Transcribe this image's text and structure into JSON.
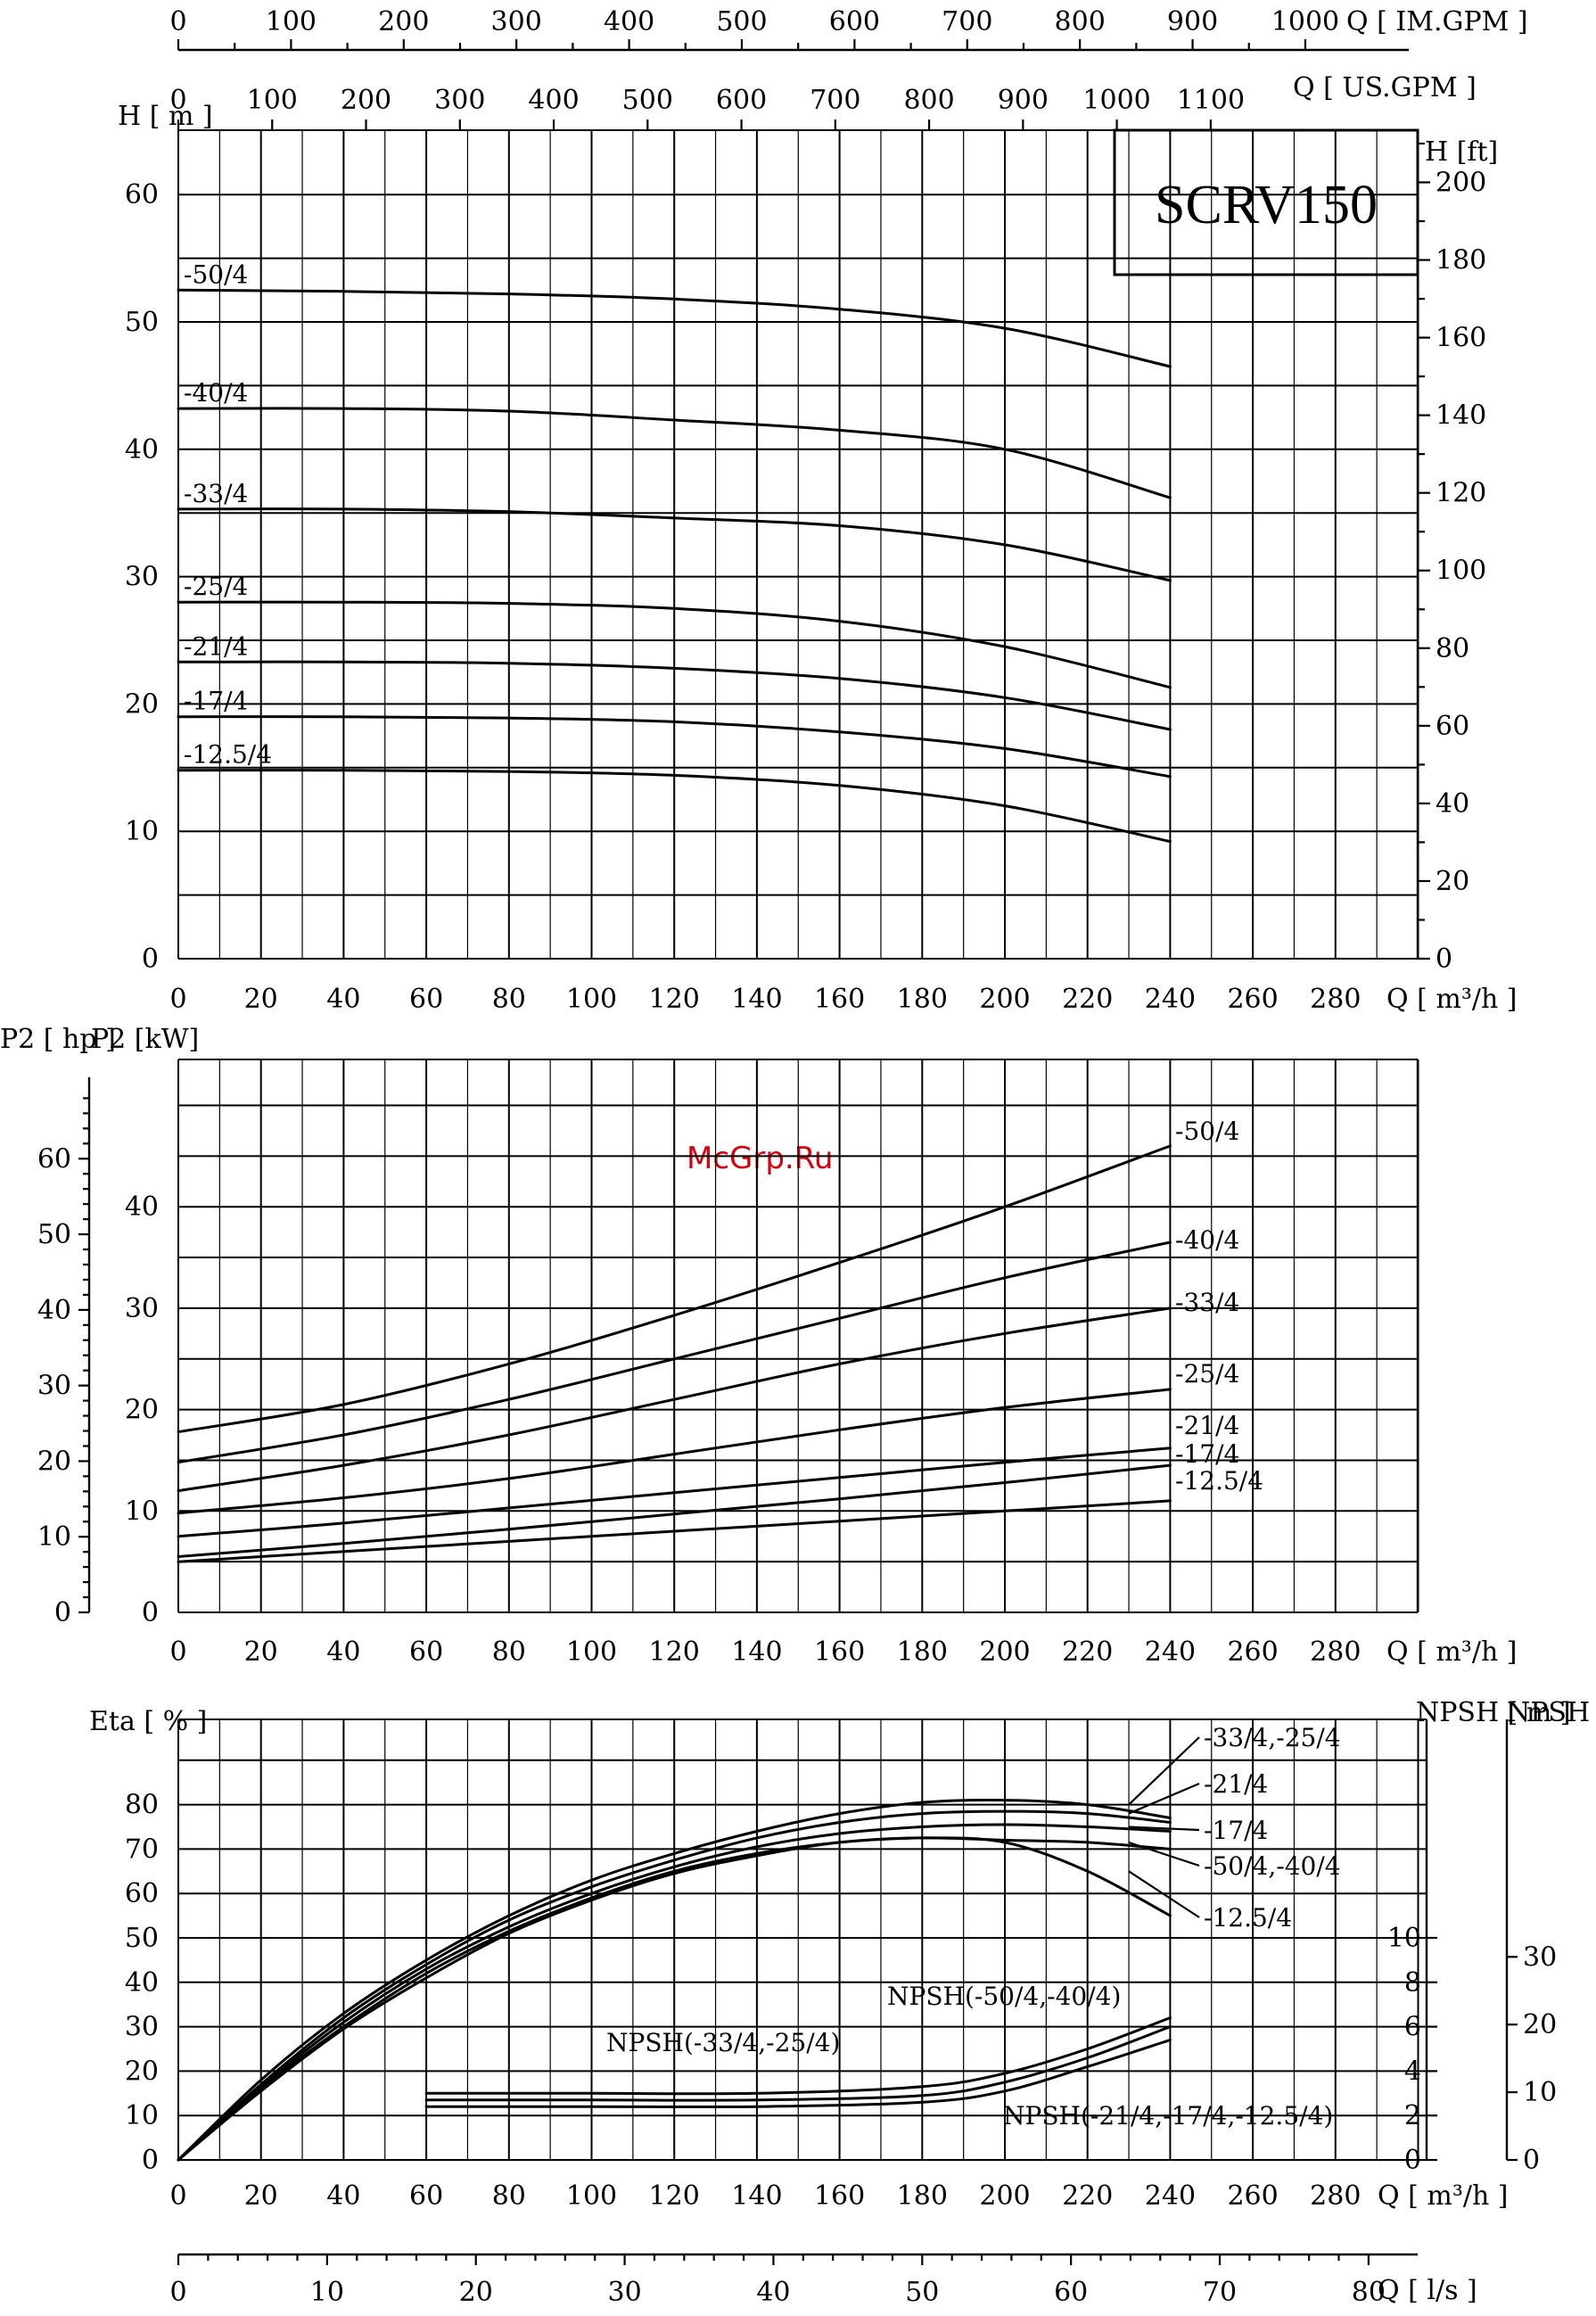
{
  "watermark": "McGrp.Ru",
  "title": "SCRV150",
  "top_axes": {
    "im_gpm_ticks": [
      "0",
      "100",
      "200",
      "300",
      "400",
      "500",
      "600",
      "700",
      "800",
      "900",
      "1000"
    ],
    "im_gpm_label": "Q [ IM.GPM ]",
    "us_gpm_ticks": [
      "0",
      "100",
      "200",
      "300",
      "400",
      "500",
      "600",
      "700",
      "800",
      "900",
      "1000",
      "1100"
    ],
    "us_gpm_label": "Q [ US.GPM ]"
  },
  "bottom_axis": {
    "ls_ticks": [
      "0",
      "10",
      "20",
      "30",
      "40",
      "50",
      "60",
      "70",
      "80"
    ],
    "ls_label": "Q [ l/s ]"
  },
  "colors": {
    "line": "#000000",
    "watermark": "#d8000c",
    "background": "#ffffff"
  },
  "chart_data": [
    {
      "type": "line",
      "name": "head",
      "xlabel": "Q [ m³/h ]",
      "ylabel": "H [ m ]",
      "ylabel_right": "H [ft]",
      "xlim": [
        0,
        300
      ],
      "ylim": [
        0,
        65
      ],
      "x_ticks": [
        "0",
        "20",
        "40",
        "60",
        "80",
        "100",
        "120",
        "140",
        "160",
        "180",
        "200",
        "220",
        "240",
        "260",
        "280"
      ],
      "y_ticks": [
        "0",
        "10",
        "20",
        "30",
        "40",
        "50",
        "60"
      ],
      "y_ticks_right": [
        "0",
        "20",
        "40",
        "60",
        "80",
        "100",
        "120",
        "140",
        "160",
        "180",
        "200"
      ],
      "grid": true,
      "series": [
        {
          "name": "-50/4",
          "x": [
            0,
            40,
            80,
            120,
            160,
            200,
            240
          ],
          "y": [
            52.5,
            52.4,
            52.2,
            51.8,
            51.0,
            49.5,
            46.5
          ]
        },
        {
          "name": "-40/4",
          "x": [
            0,
            40,
            80,
            120,
            160,
            200,
            240
          ],
          "y": [
            43.2,
            43.2,
            43.0,
            42.3,
            41.5,
            40.0,
            36.2
          ]
        },
        {
          "name": "-33/4",
          "x": [
            0,
            40,
            80,
            120,
            160,
            200,
            240
          ],
          "y": [
            35.3,
            35.3,
            35.1,
            34.6,
            34.0,
            32.5,
            29.7
          ]
        },
        {
          "name": "-25/4",
          "x": [
            0,
            40,
            80,
            120,
            160,
            200,
            240
          ],
          "y": [
            28.0,
            28.0,
            27.9,
            27.5,
            26.5,
            24.5,
            21.3
          ]
        },
        {
          "name": "-21/4",
          "x": [
            0,
            40,
            80,
            120,
            160,
            200,
            240
          ],
          "y": [
            23.3,
            23.3,
            23.2,
            22.8,
            22.0,
            20.5,
            18.0
          ]
        },
        {
          "name": "-17/4",
          "x": [
            0,
            40,
            80,
            120,
            160,
            200,
            240
          ],
          "y": [
            19.0,
            19.0,
            18.9,
            18.6,
            17.8,
            16.5,
            14.3
          ]
        },
        {
          "name": "-12.5/4",
          "x": [
            0,
            40,
            80,
            120,
            160,
            200,
            240
          ],
          "y": [
            14.8,
            14.8,
            14.7,
            14.4,
            13.6,
            12.0,
            9.2
          ]
        }
      ],
      "series_labels": [
        "-50/4",
        "-40/4",
        "-33/4",
        "-25/4",
        "-21/4",
        "-17/4",
        "-12.5/4"
      ]
    },
    {
      "type": "line",
      "name": "power",
      "xlabel": "Q [ m³/h ]",
      "ylabel": "P2 [kW]",
      "ylabel_hp": "P2 [ hp ]",
      "xlim": [
        0,
        300
      ],
      "ylim": [
        0,
        48
      ],
      "x_ticks": [
        "0",
        "20",
        "40",
        "60",
        "80",
        "100",
        "120",
        "140",
        "160",
        "180",
        "200",
        "220",
        "240",
        "260",
        "280"
      ],
      "y_ticks": [
        "0",
        "10",
        "20",
        "30",
        "40"
      ],
      "y_ticks_hp": [
        "0",
        "10",
        "20",
        "30",
        "40",
        "50",
        "60"
      ],
      "grid": true,
      "series": [
        {
          "name": "-50/4",
          "x": [
            0,
            40,
            80,
            120,
            160,
            200,
            240
          ],
          "y": [
            17.8,
            20.5,
            24.5,
            29.3,
            34.5,
            40.0,
            46.0
          ]
        },
        {
          "name": "-40/4",
          "x": [
            0,
            40,
            80,
            120,
            160,
            200,
            240
          ],
          "y": [
            14.8,
            17.5,
            21.0,
            25.0,
            29.0,
            33.0,
            36.5
          ]
        },
        {
          "name": "-33/4",
          "x": [
            0,
            40,
            80,
            120,
            160,
            200,
            240
          ],
          "y": [
            12.0,
            14.5,
            17.5,
            21.0,
            24.5,
            27.5,
            30.0
          ]
        },
        {
          "name": "-25/4",
          "x": [
            0,
            40,
            80,
            120,
            160,
            200,
            240
          ],
          "y": [
            9.8,
            11.3,
            13.2,
            15.6,
            18.0,
            20.2,
            22.0
          ]
        },
        {
          "name": "-21/4",
          "x": [
            0,
            40,
            80,
            120,
            160,
            200,
            240
          ],
          "y": [
            7.5,
            8.8,
            10.3,
            11.8,
            13.3,
            14.8,
            16.2
          ]
        },
        {
          "name": "-17/4",
          "x": [
            0,
            40,
            80,
            120,
            160,
            200,
            240
          ],
          "y": [
            5.5,
            6.8,
            8.2,
            9.7,
            11.2,
            12.8,
            14.5
          ]
        },
        {
          "name": "-12.5/4",
          "x": [
            0,
            40,
            80,
            120,
            160,
            200,
            240
          ],
          "y": [
            5.0,
            6.0,
            7.0,
            8.0,
            9.0,
            10.0,
            11.0
          ]
        }
      ],
      "series_labels": [
        "-50/4",
        "-40/4",
        "-33/4",
        "-25/4",
        "-21/4",
        "-17/4",
        "-12.5/4"
      ]
    },
    {
      "type": "line",
      "name": "efficiency_npsh",
      "xlabel": "Q [ m³/h ]",
      "ylabel": "Eta [ % ]",
      "ylabel_npsh_m": "NPSH [ m ]",
      "ylabel_npsh_ft": "NPSH [ft]",
      "xlim": [
        0,
        300
      ],
      "ylim": [
        0,
        100
      ],
      "x_ticks": [
        "0",
        "20",
        "40",
        "60",
        "80",
        "100",
        "120",
        "140",
        "160",
        "180",
        "200",
        "220",
        "240",
        "260",
        "280"
      ],
      "y_ticks": [
        "0",
        "10",
        "20",
        "30",
        "40",
        "50",
        "60",
        "70",
        "80"
      ],
      "npsh_m_ticks": [
        "0",
        "2",
        "4",
        "6",
        "8",
        "10"
      ],
      "npsh_ft_ticks": [
        "0",
        "10",
        "20",
        "30"
      ],
      "grid": true,
      "eta_series": [
        {
          "name": "-33/4,-25/4",
          "x": [
            0,
            20,
            40,
            60,
            80,
            100,
            120,
            140,
            160,
            180,
            200,
            220,
            240
          ],
          "y": [
            0,
            18,
            33,
            45,
            55,
            63,
            69,
            74,
            78,
            80.5,
            81,
            80,
            77
          ]
        },
        {
          "name": "-21/4",
          "x": [
            0,
            20,
            40,
            60,
            80,
            100,
            120,
            140,
            160,
            180,
            200,
            220,
            240
          ],
          "y": [
            0,
            17,
            32,
            44,
            54,
            61.5,
            67.5,
            72.5,
            76,
            78,
            78.5,
            78,
            76
          ]
        },
        {
          "name": "-17/4",
          "x": [
            0,
            20,
            40,
            60,
            80,
            100,
            120,
            140,
            160,
            180,
            200,
            220,
            240
          ],
          "y": [
            0,
            16.5,
            31,
            43,
            52.5,
            60,
            66,
            70.5,
            73.5,
            75,
            75.5,
            75,
            74
          ]
        },
        {
          "name": "-50/4,-40/4",
          "x": [
            0,
            20,
            40,
            60,
            80,
            100,
            120,
            140,
            160,
            180,
            200,
            220,
            240
          ],
          "y": [
            0,
            16,
            30,
            42,
            51.5,
            59,
            65,
            69,
            71.5,
            72.5,
            72,
            71.5,
            70
          ]
        },
        {
          "name": "-12.5/4",
          "x": [
            0,
            20,
            40,
            60,
            80,
            100,
            120,
            140,
            160,
            180,
            200,
            220,
            240
          ],
          "y": [
            0,
            15.5,
            29.5,
            41,
            51,
            58.5,
            64.5,
            68.5,
            71.5,
            72.5,
            71.5,
            65,
            55
          ]
        }
      ],
      "npsh_series": [
        {
          "name": "NPSH(-50/4,-40/4)",
          "x": [
            60,
            100,
            140,
            180,
            200,
            220,
            240
          ],
          "y": [
            3.0,
            3.0,
            3.0,
            3.3,
            3.9,
            5.0,
            6.4
          ]
        },
        {
          "name": "NPSH(-33/4,-25/4)",
          "x": [
            60,
            100,
            140,
            180,
            200,
            220,
            240
          ],
          "y": [
            2.7,
            2.7,
            2.7,
            2.9,
            3.5,
            4.6,
            6.0
          ]
        },
        {
          "name": "NPSH(-21/4,-17/4,-12.5/4)",
          "x": [
            60,
            100,
            140,
            180,
            200,
            220,
            240
          ],
          "y": [
            2.4,
            2.4,
            2.4,
            2.6,
            3.1,
            4.2,
            5.4
          ]
        }
      ],
      "eta_labels": [
        "-33/4,-25/4",
        "-21/4",
        "-17/4",
        "-50/4,-40/4",
        "-12.5/4"
      ],
      "npsh_labels": [
        "NPSH(-50/4,-40/4)",
        "NPSH(-33/4,-25/4)",
        "NPSH(-21/4,-17/4,-12.5/4)"
      ]
    }
  ]
}
